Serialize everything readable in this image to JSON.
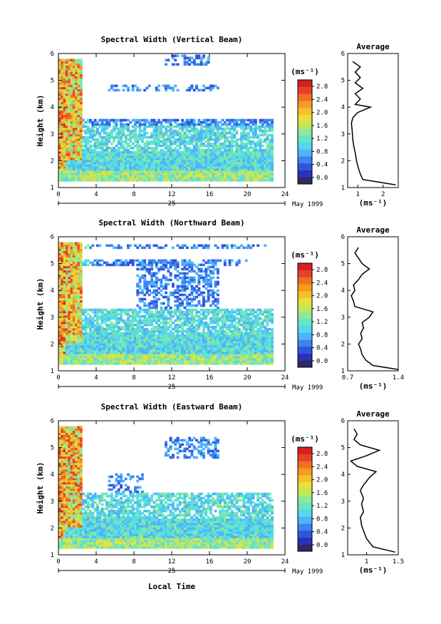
{
  "figure": {
    "date_label": "May 1999",
    "day_label": "25",
    "xlabel_bottom": "Local Time"
  },
  "colorbar": {
    "unit_label": "(ms⁻¹)",
    "ticks": [
      "0.0",
      "0.4",
      "0.8",
      "1.2",
      "1.6",
      "2.0",
      "2.4",
      "2.8"
    ],
    "colors": [
      "#2b2b66",
      "#2d2fb5",
      "#2f55e0",
      "#3f82f0",
      "#4fb4f5",
      "#55d6ee",
      "#63e6c6",
      "#8ee89a",
      "#c0e65e",
      "#e8e03a",
      "#f5c02a",
      "#f59a22",
      "#f07020",
      "#e8402a",
      "#d42020"
    ]
  },
  "chart_data": [
    {
      "type": "heatmap",
      "title": "Spectral Width (Vertical Beam)",
      "xlabel": "",
      "ylabel": "Height (km)",
      "xlim": [
        0,
        24
      ],
      "ylim": [
        1,
        6
      ],
      "xticks": [
        0,
        4,
        8,
        12,
        16,
        20,
        24
      ],
      "yticks": [
        1,
        2,
        3,
        4,
        5,
        6
      ],
      "value_unit": "ms-1",
      "profile": {
        "title": "Average",
        "xlabel": "(ms⁻¹)",
        "xticks": [
          1,
          2
        ],
        "xlim": [
          0.6,
          2.6
        ],
        "height": [
          1.1,
          1.3,
          1.5,
          1.8,
          2.0,
          2.3,
          2.5,
          2.8,
          3.1,
          3.4,
          3.6,
          3.8,
          4.0,
          4.1,
          4.3,
          4.5,
          4.7,
          4.9,
          5.1,
          5.3,
          5.5,
          5.7
        ],
        "width": [
          2.5,
          1.2,
          1.1,
          1.0,
          0.95,
          0.9,
          0.85,
          0.8,
          0.78,
          0.75,
          0.8,
          1.0,
          1.5,
          0.9,
          1.1,
          0.9,
          1.2,
          0.9,
          1.1,
          0.9,
          1.1,
          0.8
        ]
      }
    },
    {
      "type": "heatmap",
      "title": "Spectral Width (Northward Beam)",
      "xlabel": "",
      "ylabel": "Height (km)",
      "xlim": [
        0,
        24
      ],
      "ylim": [
        1,
        6
      ],
      "xticks": [
        0,
        4,
        8,
        12,
        16,
        20,
        24
      ],
      "yticks": [
        1,
        2,
        3,
        4,
        5,
        6
      ],
      "value_unit": "ms-1",
      "profile": {
        "title": "Average",
        "xlabel": "(ms⁻¹)",
        "xticks": [
          0.7,
          1.4
        ],
        "xlim": [
          0.7,
          1.4
        ],
        "height": [
          1.05,
          1.2,
          1.4,
          1.6,
          1.8,
          2.0,
          2.2,
          2.4,
          2.6,
          2.8,
          3.0,
          3.2,
          3.4,
          3.6,
          3.8,
          4.0,
          4.2,
          4.4,
          4.6,
          4.8,
          5.0,
          5.2,
          5.4,
          5.6
        ],
        "width": [
          1.4,
          1.05,
          0.95,
          0.9,
          0.88,
          0.85,
          0.9,
          0.88,
          0.92,
          0.9,
          1.0,
          1.05,
          0.8,
          0.78,
          0.75,
          0.8,
          0.78,
          0.85,
          0.9,
          1.0,
          0.9,
          0.85,
          0.8,
          0.85
        ]
      }
    },
    {
      "type": "heatmap",
      "title": "Spectral Width (Eastward Beam)",
      "xlabel": "",
      "ylabel": "Height (km)",
      "xlim": [
        0,
        24
      ],
      "ylim": [
        1,
        6
      ],
      "xticks": [
        0,
        4,
        8,
        12,
        16,
        20,
        24
      ],
      "yticks": [
        1,
        2,
        3,
        4,
        5,
        6
      ],
      "value_unit": "ms-1",
      "profile": {
        "title": "Average",
        "xlabel": "(ms⁻¹)",
        "xticks": [
          1.0,
          1.5
        ],
        "xlim": [
          0.7,
          1.5
        ],
        "height": [
          1.1,
          1.3,
          1.6,
          1.9,
          2.1,
          2.4,
          2.6,
          2.9,
          3.1,
          3.4,
          3.6,
          3.9,
          4.1,
          4.3,
          4.5,
          4.7,
          4.9,
          5.1,
          5.3,
          5.5,
          5.7
        ],
        "width": [
          1.45,
          1.1,
          1.0,
          0.95,
          0.92,
          0.9,
          0.95,
          0.92,
          0.95,
          0.9,
          0.95,
          1.05,
          1.15,
          0.85,
          0.75,
          1.0,
          1.2,
          0.9,
          0.8,
          0.85,
          0.8
        ]
      }
    }
  ]
}
